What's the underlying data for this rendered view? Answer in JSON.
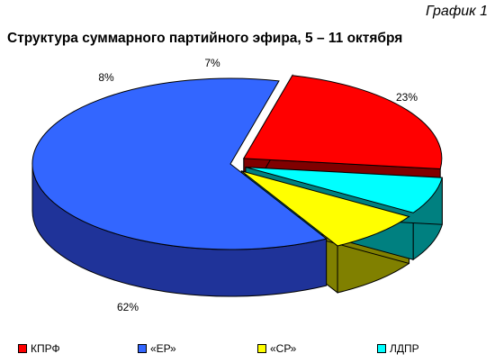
{
  "figure_caption": "График 1",
  "chart_data": {
    "type": "pie",
    "title": "Структура суммарного партийного эфира, 5 – 11 октября",
    "categories": [
      "КПРФ",
      "«ЕР»",
      "«СР»",
      "ЛДПР"
    ],
    "values": [
      23,
      62,
      8,
      7
    ],
    "value_labels": [
      "23%",
      "62%",
      "8%",
      "7%"
    ],
    "colors": [
      "#ff0000",
      "#3366ff",
      "#ffff00",
      "#00ffff"
    ],
    "side_colors": [
      "#800000",
      "#1f3399",
      "#808000",
      "#008080"
    ],
    "legend_position": "bottom",
    "style": "3d-exploded"
  }
}
